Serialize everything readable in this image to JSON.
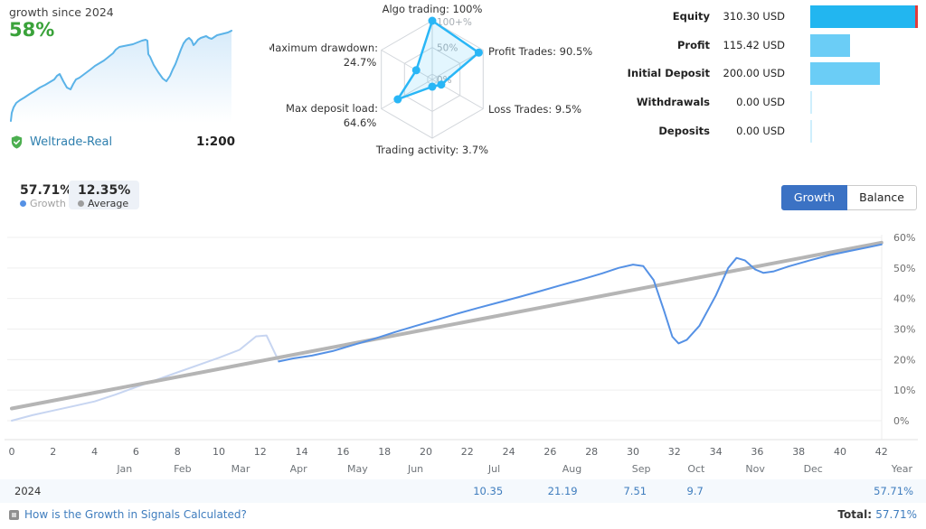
{
  "colors": {
    "accent_green": "#3aa23a",
    "link_blue": "#3f7dbe",
    "account_link_blue": "#2e7fae",
    "radar_blue": "#29b6f6",
    "bar_primary_blue": "#22b6f0",
    "bar_light_blue": "#6bcdf6",
    "bar_zero_blue": "#cfeffc",
    "bar_marker_red": "#e23b3b",
    "growth_line_blue": "#5591e5",
    "growth_line_faded": "#c7d5f1",
    "trend_gray": "#b5b5b5",
    "button_active_blue": "#3b72c4",
    "sparkline_blue": "#5bb3e8"
  },
  "summary": {
    "growth_label": "growth since 2024",
    "growth_value": "58%",
    "account_name": "Weltrade-Real",
    "leverage": "1:200"
  },
  "finance": {
    "rows": [
      {
        "label": "Equity",
        "value": "310.30 USD",
        "amount": 310.3,
        "marker": true
      },
      {
        "label": "Profit",
        "value": "115.42 USD",
        "amount": 115.42,
        "marker": false
      },
      {
        "label": "Initial Deposit",
        "value": "200.00 USD",
        "amount": 200.0,
        "marker": false
      },
      {
        "label": "Withdrawals",
        "value": "0.00 USD",
        "amount": 0,
        "marker": false
      },
      {
        "label": "Deposits",
        "value": "0.00 USD",
        "amount": 0,
        "marker": false
      }
    ]
  },
  "stats": {
    "growth_value": "57.71%",
    "growth_label": "Growth",
    "average_value": "12.35%",
    "average_label": "Average"
  },
  "toolbar": {
    "growth": "Growth",
    "balance": "Balance"
  },
  "chart_data": {
    "radar": {
      "type": "radar",
      "rings": [
        "100+%",
        "50%",
        "0%"
      ],
      "axes": [
        {
          "label": "Algo trading: 100%",
          "value": 100
        },
        {
          "label": "Profit Trades: 90.5%",
          "value": 90.5
        },
        {
          "label": "Loss Trades: 9.5%",
          "value": 9.5
        },
        {
          "label": "Trading activity: 3.7%",
          "value": 3.7
        },
        {
          "label": "Max deposit load:",
          "label2": "64.6%",
          "value": 64.6
        },
        {
          "label": "Maximum drawdown:",
          "label2": "24.7%",
          "value": 24.7
        }
      ]
    },
    "sparkline": {
      "type": "area",
      "points": [
        [
          4,
          104
        ],
        [
          5,
          95
        ],
        [
          7,
          89
        ],
        [
          10,
          84
        ],
        [
          14,
          81
        ],
        [
          19,
          78
        ],
        [
          25,
          74
        ],
        [
          30,
          71
        ],
        [
          36,
          67
        ],
        [
          42,
          64
        ],
        [
          47,
          61
        ],
        [
          52,
          58
        ],
        [
          55,
          54
        ],
        [
          58,
          52
        ],
        [
          62,
          60
        ],
        [
          66,
          67
        ],
        [
          70,
          69
        ],
        [
          73,
          63
        ],
        [
          76,
          58
        ],
        [
          80,
          56
        ],
        [
          84,
          53
        ],
        [
          88,
          50
        ],
        [
          92,
          47
        ],
        [
          97,
          43
        ],
        [
          102,
          40
        ],
        [
          107,
          37
        ],
        [
          112,
          33
        ],
        [
          117,
          29
        ],
        [
          120,
          25
        ],
        [
          124,
          22
        ],
        [
          129,
          21
        ],
        [
          134,
          20
        ],
        [
          139,
          19
        ],
        [
          144,
          17
        ],
        [
          149,
          15
        ],
        [
          153,
          14
        ],
        [
          155,
          15
        ],
        [
          156,
          30
        ],
        [
          158,
          33
        ],
        [
          162,
          42
        ],
        [
          167,
          50
        ],
        [
          172,
          57
        ],
        [
          176,
          60
        ],
        [
          180,
          54
        ],
        [
          183,
          47
        ],
        [
          186,
          41
        ],
        [
          189,
          33
        ],
        [
          192,
          25
        ],
        [
          195,
          18
        ],
        [
          198,
          14
        ],
        [
          201,
          12
        ],
        [
          204,
          15
        ],
        [
          206,
          20
        ],
        [
          208,
          18
        ],
        [
          211,
          14
        ],
        [
          214,
          12
        ],
        [
          217,
          11
        ],
        [
          220,
          10
        ],
        [
          223,
          12
        ],
        [
          226,
          13
        ],
        [
          229,
          11
        ],
        [
          232,
          9
        ],
        [
          236,
          8
        ],
        [
          240,
          7
        ],
        [
          244,
          6
        ],
        [
          248,
          4
        ]
      ]
    },
    "main": {
      "type": "line",
      "xlim": [
        0,
        42
      ],
      "x_step": 2,
      "yticks": [
        0,
        10,
        20,
        30,
        40,
        50,
        60
      ],
      "ylabel_suffix": "%",
      "series": [
        {
          "name": "growth-before-signal",
          "points": [
            [
              0,
              0
            ],
            [
              1,
              1.8
            ],
            [
              2,
              3.3
            ],
            [
              3,
              4.8
            ],
            [
              4,
              6.3
            ],
            [
              5,
              8.5
            ],
            [
              6,
              11
            ],
            [
              7,
              13.4
            ],
            [
              8,
              15.8
            ],
            [
              9,
              18.2
            ],
            [
              10,
              20.6
            ],
            [
              11,
              23.2
            ],
            [
              11.8,
              27.6
            ],
            [
              12.3,
              27.9
            ],
            [
              12.9,
              19.4
            ]
          ]
        },
        {
          "name": "trend",
          "points": [
            [
              0,
              4
            ],
            [
              42,
              58.3
            ]
          ]
        },
        {
          "name": "growth",
          "points": [
            [
              12.9,
              19.4
            ],
            [
              13.6,
              20.4
            ],
            [
              14.5,
              21.3
            ],
            [
              15.5,
              22.8
            ],
            [
              16.5,
              24.8
            ],
            [
              17.5,
              26.8
            ],
            [
              18.5,
              29
            ],
            [
              19.5,
              31
            ],
            [
              20.5,
              33
            ],
            [
              21.5,
              35
            ],
            [
              22.5,
              36.9
            ],
            [
              23.5,
              38.7
            ],
            [
              24.5,
              40.5
            ],
            [
              25.5,
              42.4
            ],
            [
              26.5,
              44.3
            ],
            [
              27.5,
              46.2
            ],
            [
              28.5,
              48.2
            ],
            [
              29.3,
              50
            ],
            [
              30,
              51.1
            ],
            [
              30.5,
              50.6
            ],
            [
              31,
              46
            ],
            [
              31.5,
              36
            ],
            [
              31.9,
              27.5
            ],
            [
              32.2,
              25.3
            ],
            [
              32.6,
              26.5
            ],
            [
              33.2,
              31
            ],
            [
              34,
              41
            ],
            [
              34.6,
              50
            ],
            [
              35,
              53.3
            ],
            [
              35.4,
              52.5
            ],
            [
              35.9,
              49.5
            ],
            [
              36.3,
              48.4
            ],
            [
              36.8,
              48.9
            ],
            [
              37.5,
              50.5
            ],
            [
              38.5,
              52.4
            ],
            [
              39.5,
              54.2
            ],
            [
              40.5,
              55.6
            ],
            [
              41.3,
              56.7
            ],
            [
              42,
              57.71
            ]
          ]
        }
      ],
      "months": [
        {
          "label": "Jan",
          "week": 5.45
        },
        {
          "label": "Feb",
          "week": 8.25
        },
        {
          "label": "Mar",
          "week": 11.05
        },
        {
          "label": "Apr",
          "week": 13.85
        },
        {
          "label": "May",
          "week": 16.7
        },
        {
          "label": "Jun",
          "week": 19.5
        },
        {
          "label": "Jul",
          "week": 23.3
        },
        {
          "label": "Aug",
          "week": 27.05
        },
        {
          "label": "Sep",
          "week": 30.4
        },
        {
          "label": "Oct",
          "week": 33.05
        },
        {
          "label": "Nov",
          "week": 35.9
        },
        {
          "label": "Dec",
          "week": 38.7
        }
      ],
      "year_label": "Year"
    }
  },
  "table": {
    "year": "2024",
    "monthly": [
      {
        "label": "10.35",
        "week": 23.0
      },
      {
        "label": "21.19",
        "week": 26.6
      },
      {
        "label": "7.51",
        "week": 30.1
      },
      {
        "label": "9.7",
        "week": 33.0
      }
    ],
    "year_total": "57.71%"
  },
  "footer": {
    "help_link": "How is the Growth in Signals Calculated?",
    "total_label": "Total:",
    "total_value": "57.71%"
  }
}
